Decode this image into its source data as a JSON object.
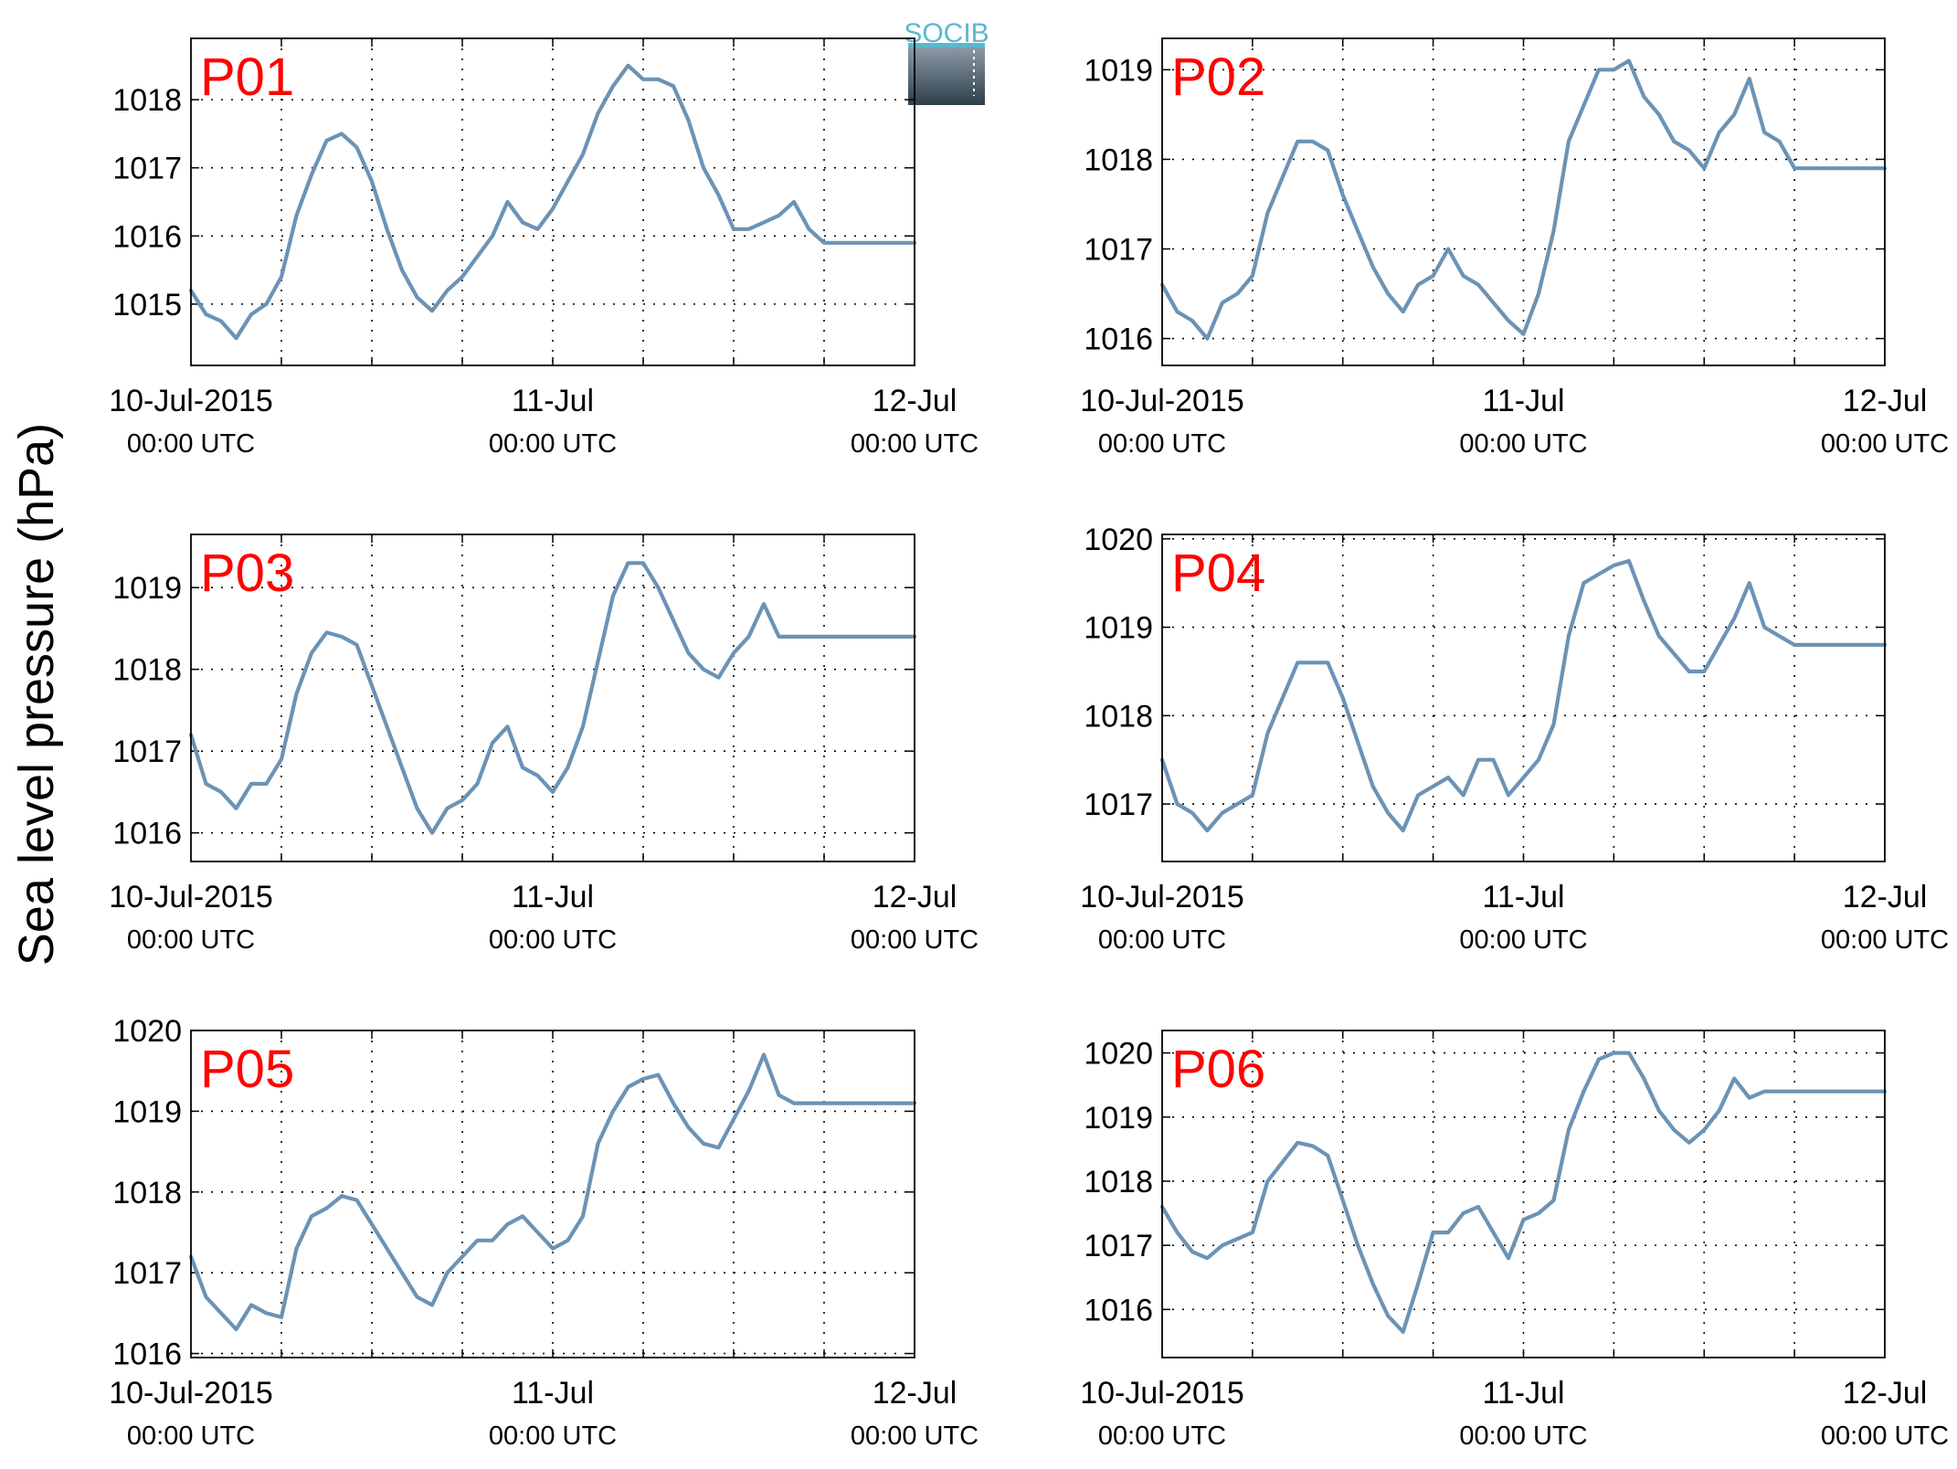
{
  "y_axis_label": "Sea level pressure (hPa)",
  "logo": {
    "text": "SOCIB",
    "text_color": "#5bb8cc",
    "box_top_color": "#8a9aa6",
    "box_bottom_color": "#2e3f4c"
  },
  "colors": {
    "line": "#6b93b5",
    "panel_label": "#ff0000",
    "grid": "#000000"
  },
  "x_ticks": [
    {
      "main": "10-Jul-2015",
      "sub": "00:00 UTC"
    },
    {
      "main": "11-Jul",
      "sub": "00:00 UTC"
    },
    {
      "main": "12-Jul",
      "sub": "00:00 UTC"
    }
  ],
  "chart_data": [
    {
      "type": "line",
      "title": "P01",
      "x_unit": "hours since 10-Jul-2015 00:00 UTC",
      "xlim": [
        0,
        48
      ],
      "ylim": [
        1014.1,
        1018.9
      ],
      "yticks": [
        1015,
        1016,
        1017,
        1018
      ],
      "x": [
        0,
        1,
        2,
        3,
        4,
        5,
        6,
        7,
        8,
        9,
        10,
        11,
        12,
        13,
        14,
        15,
        16,
        17,
        18,
        19,
        20,
        21,
        22,
        23,
        24,
        25,
        26,
        27,
        28,
        29,
        30,
        31,
        32,
        33,
        34,
        35,
        36,
        37,
        38,
        39,
        40,
        41,
        42,
        43,
        44,
        45,
        46,
        47,
        48
      ],
      "series": [
        {
          "values": [
            1015.2,
            1014.85,
            1014.75,
            1014.5,
            1014.85,
            1015.0,
            1015.4,
            1016.3,
            1016.9,
            1017.4,
            1017.5,
            1017.3,
            1016.8,
            1016.1,
            1015.5,
            1015.1,
            1014.9,
            1015.2,
            1015.4,
            1015.7,
            1016.0,
            1016.5,
            1016.2,
            1016.1,
            1016.4,
            1016.8,
            1017.2,
            1017.8,
            1018.2,
            1018.5,
            1018.3,
            1018.3,
            1018.2,
            1017.7,
            1017.0,
            1016.6,
            1016.1,
            1016.1,
            1016.2,
            1016.3,
            1016.5,
            1016.1,
            1015.9,
            1015.9,
            1015.9,
            1015.9,
            1015.9,
            1015.9,
            1015.9
          ]
        }
      ]
    },
    {
      "type": "line",
      "title": "P02",
      "x_unit": "hours since 10-Jul-2015 00:00 UTC",
      "xlim": [
        0,
        48
      ],
      "ylim": [
        1015.7,
        1019.35
      ],
      "yticks": [
        1016,
        1017,
        1018,
        1019
      ],
      "x": [
        0,
        1,
        2,
        3,
        4,
        5,
        6,
        7,
        8,
        9,
        10,
        11,
        12,
        13,
        14,
        15,
        16,
        17,
        18,
        19,
        20,
        21,
        22,
        23,
        24,
        25,
        26,
        27,
        28,
        29,
        30,
        31,
        32,
        33,
        34,
        35,
        36,
        37,
        38,
        39,
        40,
        41,
        42,
        43,
        44,
        45,
        46,
        47,
        48
      ],
      "series": [
        {
          "values": [
            1016.6,
            1016.3,
            1016.2,
            1016.0,
            1016.4,
            1016.5,
            1016.7,
            1017.4,
            1017.8,
            1018.2,
            1018.2,
            1018.1,
            1017.6,
            1017.2,
            1016.8,
            1016.5,
            1016.3,
            1016.6,
            1016.7,
            1017.0,
            1016.7,
            1016.6,
            1016.4,
            1016.2,
            1016.05,
            1016.5,
            1017.2,
            1018.2,
            1018.6,
            1019.0,
            1019.0,
            1019.1,
            1018.7,
            1018.5,
            1018.2,
            1018.1,
            1017.9,
            1018.3,
            1018.5,
            1018.9,
            1018.3,
            1018.2,
            1017.9,
            1017.9,
            1017.9,
            1017.9,
            1017.9,
            1017.9,
            1017.9
          ]
        }
      ]
    },
    {
      "type": "line",
      "title": "P03",
      "x_unit": "hours since 10-Jul-2015 00:00 UTC",
      "xlim": [
        0,
        48
      ],
      "ylim": [
        1015.65,
        1019.65
      ],
      "yticks": [
        1016,
        1017,
        1018,
        1019
      ],
      "x": [
        0,
        1,
        2,
        3,
        4,
        5,
        6,
        7,
        8,
        9,
        10,
        11,
        12,
        13,
        14,
        15,
        16,
        17,
        18,
        19,
        20,
        21,
        22,
        23,
        24,
        25,
        26,
        27,
        28,
        29,
        30,
        31,
        32,
        33,
        34,
        35,
        36,
        37,
        38,
        39,
        40,
        41,
        42,
        43,
        44,
        45,
        46,
        47,
        48
      ],
      "series": [
        {
          "values": [
            1017.2,
            1016.6,
            1016.5,
            1016.3,
            1016.6,
            1016.6,
            1016.9,
            1017.7,
            1018.2,
            1018.45,
            1018.4,
            1018.3,
            1017.8,
            1017.3,
            1016.8,
            1016.3,
            1016.0,
            1016.3,
            1016.4,
            1016.6,
            1017.1,
            1017.3,
            1016.8,
            1016.7,
            1016.5,
            1016.8,
            1017.3,
            1018.1,
            1018.9,
            1019.3,
            1019.3,
            1019.0,
            1018.6,
            1018.2,
            1018.0,
            1017.9,
            1018.2,
            1018.4,
            1018.8,
            1018.4,
            1018.4,
            1018.4,
            1018.4,
            1018.4,
            1018.4,
            1018.4,
            1018.4,
            1018.4,
            1018.4
          ]
        }
      ]
    },
    {
      "type": "line",
      "title": "P04",
      "x_unit": "hours since 10-Jul-2015 00:00 UTC",
      "xlim": [
        0,
        48
      ],
      "ylim": [
        1016.35,
        1020.05
      ],
      "yticks": [
        1017,
        1018,
        1019,
        1020
      ],
      "x": [
        0,
        1,
        2,
        3,
        4,
        5,
        6,
        7,
        8,
        9,
        10,
        11,
        12,
        13,
        14,
        15,
        16,
        17,
        18,
        19,
        20,
        21,
        22,
        23,
        24,
        25,
        26,
        27,
        28,
        29,
        30,
        31,
        32,
        33,
        34,
        35,
        36,
        37,
        38,
        39,
        40,
        41,
        42,
        43,
        44,
        45,
        46,
        47,
        48
      ],
      "series": [
        {
          "values": [
            1017.5,
            1017.0,
            1016.9,
            1016.7,
            1016.9,
            1017.0,
            1017.1,
            1017.8,
            1018.2,
            1018.6,
            1018.6,
            1018.6,
            1018.2,
            1017.7,
            1017.2,
            1016.9,
            1016.7,
            1017.1,
            1017.2,
            1017.3,
            1017.1,
            1017.5,
            1017.5,
            1017.1,
            1017.3,
            1017.5,
            1017.9,
            1018.9,
            1019.5,
            1019.6,
            1019.7,
            1019.75,
            1019.3,
            1018.9,
            1018.7,
            1018.5,
            1018.5,
            1018.8,
            1019.1,
            1019.5,
            1019.0,
            1018.9,
            1018.8,
            1018.8,
            1018.8,
            1018.8,
            1018.8,
            1018.8,
            1018.8
          ]
        }
      ]
    },
    {
      "type": "line",
      "title": "P05",
      "x_unit": "hours since 10-Jul-2015 00:00 UTC",
      "xlim": [
        0,
        48
      ],
      "ylim": [
        1015.95,
        1020.0
      ],
      "yticks": [
        1016,
        1017,
        1018,
        1019,
        1020
      ],
      "x": [
        0,
        1,
        2,
        3,
        4,
        5,
        6,
        7,
        8,
        9,
        10,
        11,
        12,
        13,
        14,
        15,
        16,
        17,
        18,
        19,
        20,
        21,
        22,
        23,
        24,
        25,
        26,
        27,
        28,
        29,
        30,
        31,
        32,
        33,
        34,
        35,
        36,
        37,
        38,
        39,
        40,
        41,
        42,
        43,
        44,
        45,
        46,
        47,
        48
      ],
      "series": [
        {
          "values": [
            1017.2,
            1016.7,
            1016.5,
            1016.3,
            1016.6,
            1016.5,
            1016.45,
            1017.3,
            1017.7,
            1017.8,
            1017.95,
            1017.9,
            1017.6,
            1017.3,
            1017.0,
            1016.7,
            1016.6,
            1017.0,
            1017.2,
            1017.4,
            1017.4,
            1017.6,
            1017.7,
            1017.5,
            1017.3,
            1017.4,
            1017.7,
            1018.6,
            1019.0,
            1019.3,
            1019.4,
            1019.45,
            1019.1,
            1018.8,
            1018.6,
            1018.55,
            1018.9,
            1019.25,
            1019.7,
            1019.2,
            1019.1,
            1019.1,
            1019.1,
            1019.1,
            1019.1,
            1019.1,
            1019.1,
            1019.1,
            1019.1
          ]
        }
      ]
    },
    {
      "type": "line",
      "title": "P06",
      "x_unit": "hours since 10-Jul-2015 00:00 UTC",
      "xlim": [
        0,
        48
      ],
      "ylim": [
        1015.25,
        1020.35
      ],
      "yticks": [
        1016,
        1017,
        1018,
        1019,
        1020
      ],
      "x": [
        0,
        1,
        2,
        3,
        4,
        5,
        6,
        7,
        8,
        9,
        10,
        11,
        12,
        13,
        14,
        15,
        16,
        17,
        18,
        19,
        20,
        21,
        22,
        23,
        24,
        25,
        26,
        27,
        28,
        29,
        30,
        31,
        32,
        33,
        34,
        35,
        36,
        37,
        38,
        39,
        40,
        41,
        42,
        43,
        44,
        45,
        46,
        47,
        48
      ],
      "series": [
        {
          "values": [
            1017.6,
            1017.2,
            1016.9,
            1016.8,
            1017.0,
            1017.1,
            1017.2,
            1018.0,
            1018.3,
            1018.6,
            1018.55,
            1018.4,
            1017.7,
            1017.0,
            1016.4,
            1015.9,
            1015.65,
            1016.4,
            1017.2,
            1017.2,
            1017.5,
            1017.6,
            1017.2,
            1016.8,
            1017.4,
            1017.5,
            1017.7,
            1018.8,
            1019.4,
            1019.9,
            1020.0,
            1020.0,
            1019.6,
            1019.1,
            1018.8,
            1018.6,
            1018.8,
            1019.1,
            1019.6,
            1019.3,
            1019.4,
            1019.4,
            1019.4,
            1019.4,
            1019.4,
            1019.4,
            1019.4,
            1019.4,
            1019.4
          ]
        }
      ]
    }
  ]
}
